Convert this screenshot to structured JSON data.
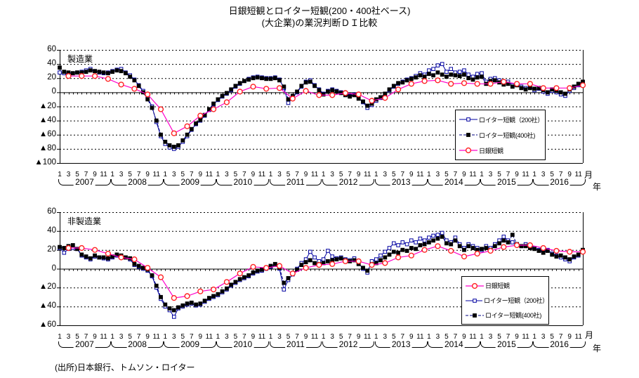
{
  "title": {
    "line1": "日銀短観とロイター短観(200・400社ベース)",
    "line2": "(大企業)の業況判断ＤＩ比較"
  },
  "footer": {
    "source": "(出所)日本銀行、トムソン・ロイター"
  },
  "axis": {
    "month_suffix": "月",
    "year_suffix": "年",
    "month_tick_labels": [
      "1",
      "3",
      "5",
      "7",
      "9",
      "11"
    ],
    "years": [
      "2007",
      "2008",
      "2009",
      "2010",
      "2011",
      "2012",
      "2013",
      "2014",
      "2015",
      "2016"
    ]
  },
  "colors": {
    "reuters_200": "#0000a0",
    "reuters_400": "#000080",
    "boj_line": "#ff00cc",
    "boj_marker": "#ff2222",
    "grid": "#000000",
    "text": "#000000"
  },
  "chart_data": [
    {
      "type": "line",
      "title": "製造業",
      "ylim": [
        -100,
        60
      ],
      "ytick_step": 20,
      "x_range": "2007-01 to 2016-12, monthly ticks 1/3/5/7/9/11",
      "grid": "dashed horizontal every 20",
      "legend_position": "inside right",
      "legend": [
        {
          "label": "ロイター短観（200社）",
          "style": "r200"
        },
        {
          "label": "ロイター短観(400社)",
          "style": "r400"
        },
        {
          "label": "日銀短観",
          "style": "boj"
        }
      ],
      "series": [
        {
          "name": "ロイター短観（200社）",
          "style": "r200",
          "freq": "monthly",
          "values": [
            28,
            27,
            26,
            27,
            28,
            29,
            31,
            33,
            30,
            28,
            27,
            28,
            30,
            32,
            33,
            28,
            24,
            18,
            10,
            2,
            -8,
            -20,
            -42,
            -62,
            -73,
            -78,
            -80,
            -77,
            -70,
            -62,
            -53,
            -45,
            -40,
            -33,
            -25,
            -17,
            -11,
            -6,
            -2,
            3,
            8,
            12,
            16,
            19,
            21,
            22,
            21,
            20,
            20,
            21,
            18,
            6,
            -15,
            -8,
            0,
            8,
            15,
            17,
            10,
            4,
            -2,
            2,
            4,
            2,
            0,
            -3,
            -5,
            -3,
            -8,
            -14,
            -22,
            -18,
            -12,
            -8,
            -3,
            3,
            8,
            12,
            15,
            18,
            20,
            23,
            27,
            25,
            31,
            33,
            38,
            40,
            29,
            33,
            28,
            29,
            31,
            25,
            22,
            26,
            27,
            15,
            19,
            20,
            17,
            13,
            15,
            10,
            12,
            8,
            6,
            8,
            3,
            5,
            1,
            -2,
            2,
            0,
            -3,
            -5,
            2,
            6,
            10,
            14
          ]
        },
        {
          "name": "ロイター短観(400社)",
          "style": "r400",
          "freq": "monthly",
          "values": [
            35,
            29,
            28,
            27,
            28,
            28,
            29,
            31,
            30,
            29,
            28,
            27,
            29,
            31,
            30,
            27,
            22,
            17,
            9,
            0,
            -10,
            -22,
            -40,
            -60,
            -70,
            -75,
            -77,
            -75,
            -68,
            -60,
            -52,
            -44,
            -39,
            -32,
            -24,
            -16,
            -10,
            -5,
            -1,
            4,
            9,
            13,
            16,
            18,
            20,
            21,
            20,
            19,
            19,
            20,
            17,
            8,
            -10,
            -5,
            1,
            9,
            14,
            15,
            9,
            3,
            -3,
            1,
            3,
            1,
            -1,
            -4,
            -6,
            -4,
            -9,
            -13,
            -19,
            -16,
            -10,
            -7,
            -2,
            4,
            9,
            13,
            14,
            17,
            19,
            21,
            24,
            22,
            26,
            24,
            28,
            25,
            22,
            25,
            24,
            23,
            25,
            20,
            18,
            21,
            22,
            12,
            16,
            17,
            14,
            11,
            12,
            8,
            10,
            6,
            4,
            6,
            5,
            6,
            3,
            0,
            4,
            2,
            0,
            -2,
            4,
            8,
            12,
            15
          ]
        },
        {
          "name": "日銀短観",
          "style": "boj",
          "freq": "quarterly",
          "survey_months": "3,6,9,12",
          "values": [
            23,
            23,
            23,
            19,
            11,
            5,
            -3,
            -24,
            -58,
            -48,
            -33,
            -24,
            -14,
            1,
            8,
            5,
            6,
            -9,
            2,
            -4,
            -4,
            -1,
            -3,
            -12,
            -8,
            4,
            12,
            16,
            17,
            12,
            13,
            12,
            12,
            15,
            12,
            12,
            6,
            6,
            6,
            10
          ]
        }
      ]
    },
    {
      "type": "line",
      "title": "非製造業",
      "ylim": [
        -60,
        60
      ],
      "ytick_step": 20,
      "x_range": "2007-01 to 2016-12, monthly ticks 1/3/5/7/9/11",
      "grid": "dashed horizontal every 20",
      "legend_position": "inside right",
      "legend": [
        {
          "label": "日銀短観",
          "style": "boj"
        },
        {
          "label": "ロイター短観（200社）",
          "style": "r200"
        },
        {
          "label": "ロイター短観(400社)",
          "style": "r400"
        }
      ],
      "series": [
        {
          "name": "ロイター短観（200社）",
          "style": "r200",
          "freq": "monthly",
          "values": [
            22,
            17,
            21,
            22,
            21,
            14,
            12,
            10,
            13,
            12,
            11,
            10,
            12,
            14,
            13,
            12,
            10,
            4,
            2,
            0,
            -2,
            -8,
            -20,
            -32,
            -40,
            -44,
            -51,
            -42,
            -40,
            -38,
            -37,
            -39,
            -38,
            -35,
            -32,
            -30,
            -28,
            -25,
            -22,
            -18,
            -15,
            -12,
            -10,
            -8,
            -5,
            -3,
            -2,
            0,
            2,
            4,
            0,
            -22,
            -12,
            -6,
            0,
            6,
            10,
            18,
            12,
            8,
            10,
            19,
            13,
            11,
            12,
            10,
            9,
            11,
            6,
            0,
            -4,
            8,
            10,
            14,
            18,
            22,
            27,
            25,
            28,
            26,
            30,
            28,
            32,
            30,
            33,
            35,
            36,
            38,
            30,
            28,
            33,
            26,
            22,
            26,
            24,
            22,
            20,
            24,
            22,
            26,
            30,
            34,
            30,
            28,
            26,
            24,
            26,
            24,
            22,
            20,
            18,
            20,
            16,
            14,
            12,
            10,
            8,
            12,
            14,
            19
          ]
        },
        {
          "name": "ロイター短観(400社)",
          "style": "r400",
          "freq": "monthly",
          "values": [
            23,
            22,
            24,
            25,
            21,
            15,
            13,
            11,
            14,
            12,
            12,
            11,
            13,
            15,
            14,
            12,
            11,
            5,
            3,
            1,
            -1,
            -7,
            -18,
            -30,
            -38,
            -42,
            -44,
            -41,
            -39,
            -37,
            -36,
            -38,
            -37,
            -34,
            -31,
            -29,
            -27,
            -24,
            -21,
            -17,
            -14,
            -11,
            -9,
            -7,
            -4,
            -2,
            -1,
            1,
            3,
            5,
            1,
            -15,
            -10,
            -5,
            -1,
            4,
            7,
            9,
            6,
            5,
            6,
            8,
            9,
            10,
            11,
            9,
            8,
            9,
            5,
            1,
            -2,
            5,
            6,
            9,
            12,
            15,
            18,
            17,
            20,
            19,
            22,
            21,
            25,
            26,
            28,
            30,
            32,
            34,
            27,
            26,
            30,
            24,
            20,
            24,
            22,
            20,
            21,
            22,
            20,
            24,
            27,
            30,
            28,
            36,
            26,
            24,
            24,
            22,
            21,
            19,
            17,
            19,
            15,
            13,
            14,
            12,
            10,
            13,
            15,
            20
          ]
        },
        {
          "name": "日銀短観",
          "style": "boj",
          "freq": "quarterly",
          "survey_months": "3,6,9,12",
          "values": [
            22,
            22,
            20,
            16,
            12,
            10,
            1,
            -9,
            -31,
            -29,
            -24,
            -22,
            -14,
            -5,
            2,
            1,
            3,
            -5,
            1,
            4,
            5,
            8,
            8,
            4,
            6,
            12,
            14,
            20,
            24,
            19,
            13,
            16,
            19,
            23,
            25,
            25,
            22,
            19,
            18,
            18
          ]
        }
      ]
    }
  ]
}
